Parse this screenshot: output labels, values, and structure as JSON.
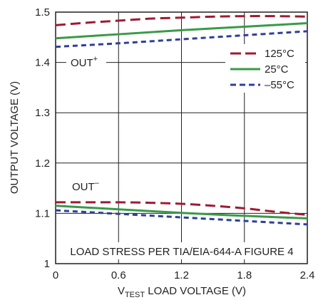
{
  "chart_data": {
    "type": "line",
    "title": "",
    "xlabel": {
      "prefix": "V",
      "subscript": "TEST",
      "suffix": " LOAD VOLTAGE (V)"
    },
    "ylabel": "OUTPUT VOLTAGE (V)",
    "xlim": [
      0,
      2.4
    ],
    "ylim": [
      1.0,
      1.5
    ],
    "x_ticks": [
      "0",
      "0.6",
      "1.2",
      "1.8",
      "2.4"
    ],
    "y_ticks": [
      "1",
      "1.1",
      "1.2",
      "1.3",
      "1.4",
      "1.5"
    ],
    "grid": true,
    "legend_position": "top-right",
    "colors": {
      "125C": "#9e1b32",
      "25C": "#3a9a48",
      "-55C": "#2e3f98",
      "grid": "#231f20"
    },
    "series": [
      {
        "name": "125°C",
        "style": "long-dash",
        "groups": [
          {
            "label": "OUT⁺",
            "x": [
              0,
              0.3,
              0.6,
              0.9,
              1.2,
              1.5,
              1.8,
              2.1,
              2.4
            ],
            "y": [
              1.474,
              1.479,
              1.483,
              1.487,
              1.489,
              1.491,
              1.492,
              1.492,
              1.491
            ]
          },
          {
            "label": "OUT⁻",
            "x": [
              0,
              0.3,
              0.6,
              0.9,
              1.2,
              1.5,
              1.8,
              2.1,
              2.4
            ],
            "y": [
              1.122,
              1.122,
              1.122,
              1.121,
              1.119,
              1.115,
              1.11,
              1.103,
              1.097
            ]
          }
        ]
      },
      {
        "name": "25°C",
        "style": "solid",
        "groups": [
          {
            "label": "OUT⁺",
            "x": [
              0,
              0.6,
              1.2,
              1.8,
              2.4
            ],
            "y": [
              1.448,
              1.456,
              1.464,
              1.471,
              1.478
            ]
          },
          {
            "label": "OUT⁻",
            "x": [
              0,
              0.6,
              1.2,
              1.8,
              2.4
            ],
            "y": [
              1.115,
              1.108,
              1.101,
              1.095,
              1.09
            ]
          }
        ]
      },
      {
        "name": "–55°C",
        "style": "short-dash",
        "groups": [
          {
            "label": "OUT⁺",
            "x": [
              0,
              0.6,
              1.2,
              1.8,
              2.4
            ],
            "y": [
              1.431,
              1.438,
              1.446,
              1.454,
              1.462
            ]
          },
          {
            "label": "OUT⁻",
            "x": [
              0,
              0.6,
              1.2,
              1.8,
              2.4
            ],
            "y": [
              1.106,
              1.099,
              1.092,
              1.085,
              1.078
            ]
          }
        ]
      }
    ],
    "annotations": {
      "out_plus": {
        "base": "OUT",
        "sup": "+"
      },
      "out_minus": {
        "base": "OUT",
        "sup": "–"
      },
      "note": "LOAD STRESS PER TIA/EIA-644-A FIGURE 4"
    }
  }
}
